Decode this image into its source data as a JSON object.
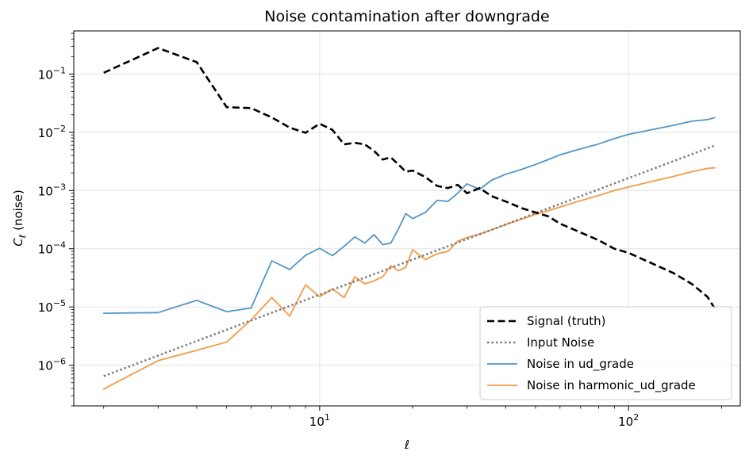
{
  "chart_data": {
    "type": "line",
    "title": "Noise contamination after downgrade",
    "xlabel": "ℓ",
    "ylabel_main": "C",
    "ylabel_sub": "ℓ",
    "ylabel_rest": " (noise)",
    "xscale": "log",
    "yscale": "log",
    "xlim": [
      1.6,
      230
    ],
    "ylim": [
      2e-07,
      0.55
    ],
    "grid": true,
    "legend_position": "lower-right",
    "x_ticks": [
      {
        "value": 10,
        "base": "10",
        "exp": "1"
      },
      {
        "value": 100,
        "base": "10",
        "exp": "2"
      }
    ],
    "y_ticks": [
      {
        "value": 1e-06,
        "base": "10",
        "exp": "−6"
      },
      {
        "value": 1e-05,
        "base": "10",
        "exp": "−5"
      },
      {
        "value": 0.0001,
        "base": "10",
        "exp": "−4"
      },
      {
        "value": 0.001,
        "base": "10",
        "exp": "−3"
      },
      {
        "value": 0.01,
        "base": "10",
        "exp": "−2"
      },
      {
        "value": 0.1,
        "base": "10",
        "exp": "−1"
      }
    ],
    "series": [
      {
        "name": "Signal (truth)",
        "color": "#000000",
        "style": "dashed",
        "x": [
          2,
          3,
          4,
          5,
          6,
          7,
          8,
          9,
          10,
          11,
          12,
          13,
          14,
          15,
          16,
          17,
          18,
          19,
          20,
          22,
          24,
          26,
          28,
          30,
          33,
          36,
          40,
          45,
          50,
          55,
          60,
          70,
          80,
          90,
          100,
          120,
          140,
          160,
          180,
          190
        ],
        "y": [
          0.105,
          0.28,
          0.16,
          0.027,
          0.026,
          0.018,
          0.012,
          0.0098,
          0.014,
          0.011,
          0.0062,
          0.0066,
          0.0062,
          0.0048,
          0.0034,
          0.0037,
          0.0028,
          0.0021,
          0.0022,
          0.0017,
          0.0012,
          0.0011,
          0.00125,
          0.0009,
          0.0011,
          0.0008,
          0.00065,
          0.0005,
          0.00042,
          0.00036,
          0.00027,
          0.00019,
          0.00014,
          0.0001,
          8.5e-05,
          5.5e-05,
          3.8e-05,
          2.5e-05,
          1.5e-05,
          9.5e-06
        ]
      },
      {
        "name": "Input Noise",
        "color": "#808080",
        "style": "dotted",
        "x": [
          2,
          190
        ],
        "y": [
          6.5e-07,
          0.0059
        ]
      },
      {
        "name": "Noise in ud_grade",
        "color": "#4a90c4",
        "style": "solid",
        "x": [
          2,
          3,
          4,
          5,
          6,
          7,
          8,
          9,
          10,
          11,
          12,
          13,
          14,
          15,
          16,
          17,
          18,
          19,
          20,
          22,
          24,
          26,
          28,
          30,
          33,
          36,
          40,
          45,
          50,
          55,
          60,
          70,
          80,
          90,
          100,
          120,
          140,
          160,
          180,
          190
        ],
        "y": [
          7.8e-06,
          8e-06,
          1.3e-05,
          8.3e-06,
          9.6e-06,
          6.2e-05,
          4.4e-05,
          7.7e-05,
          0.000102,
          7.6e-05,
          0.00011,
          0.00016,
          0.000125,
          0.000175,
          0.000118,
          0.000125,
          0.00022,
          0.0004,
          0.00033,
          0.00042,
          0.00068,
          0.00065,
          0.0009,
          0.0013,
          0.00105,
          0.0015,
          0.0019,
          0.0023,
          0.0028,
          0.0034,
          0.0041,
          0.0052,
          0.0063,
          0.0078,
          0.0092,
          0.0112,
          0.0132,
          0.0155,
          0.0165,
          0.0178
        ]
      },
      {
        "name": "Noise in harmonic_ud_grade",
        "color": "#f5953b",
        "style": "solid",
        "x": [
          2,
          3,
          4,
          5,
          6,
          7,
          8,
          9,
          10,
          11,
          12,
          13,
          14,
          15,
          16,
          17,
          18,
          19,
          20,
          22,
          24,
          26,
          28,
          30,
          33,
          36,
          40,
          45,
          50,
          55,
          60,
          70,
          80,
          90,
          100,
          120,
          140,
          160,
          180,
          190
        ],
        "y": [
          3.9e-07,
          1.2e-06,
          1.8e-06,
          2.5e-06,
          6e-06,
          1.45e-05,
          7e-06,
          2.4e-05,
          1.5e-05,
          2.05e-05,
          1.45e-05,
          3.3e-05,
          2.5e-05,
          2.8e-05,
          3.3e-05,
          5.1e-05,
          4.2e-05,
          4.8e-05,
          9.6e-05,
          6.5e-05,
          8.2e-05,
          9e-05,
          0.000135,
          0.000155,
          0.00018,
          0.00021,
          0.00026,
          0.00032,
          0.00039,
          0.00045,
          0.00052,
          0.00067,
          0.00082,
          0.001,
          0.00115,
          0.00145,
          0.00175,
          0.0021,
          0.0024,
          0.00245
        ]
      }
    ]
  }
}
